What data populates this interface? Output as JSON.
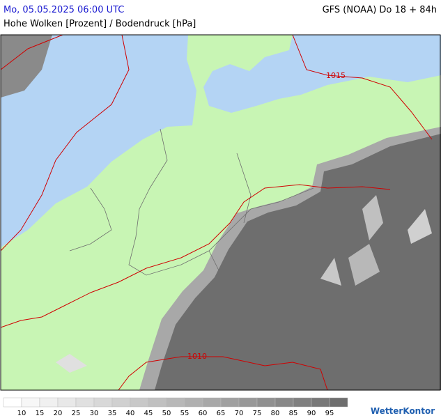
{
  "header": {
    "datetime": "Mo, 05.05.2025 06:00 UTC",
    "model": "GFS (NOAA) Do 18 + 84h",
    "subtitle": "Hohe Wolken [Prozent] / Bodendruck [hPa]"
  },
  "map": {
    "isobar_labels": [
      "1015",
      "1010"
    ]
  },
  "legend": {
    "labels": [
      10,
      15,
      20,
      25,
      30,
      35,
      40,
      45,
      50,
      55,
      60,
      65,
      70,
      75,
      80,
      85,
      90,
      95
    ],
    "colors": [
      "#ffffff",
      "#f7f7f7",
      "#f0f0f0",
      "#e8e8e8",
      "#e0e0e0",
      "#d8d8d8",
      "#d0d0d0",
      "#c8c8c8",
      "#c0c0c0",
      "#b8b8b8",
      "#b0b0b0",
      "#a8a8a8",
      "#a0a0a0",
      "#989898",
      "#909090",
      "#888888",
      "#808080",
      "#787878",
      "#6e6e6e"
    ]
  },
  "brand": "WetterKontor"
}
